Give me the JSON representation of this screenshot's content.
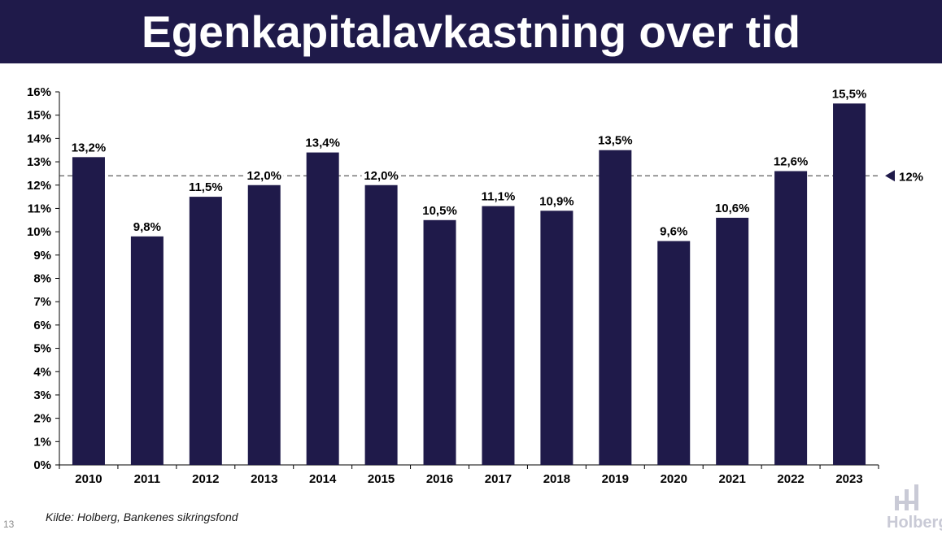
{
  "title": "Egenkapitalavkastning over tid",
  "source": "Kilde: Holberg, Bankenes sikringsfond",
  "page_number": "13",
  "logo": {
    "text": "Holberg",
    "icon": "holberg-logo-icon",
    "color": "#c9cad6"
  },
  "colors": {
    "bar": "#1f1a4a",
    "title_bg": "#1f1a4a",
    "title_text": "#ffffff"
  },
  "chart_data": {
    "type": "bar",
    "categories": [
      "2010",
      "2011",
      "2012",
      "2013",
      "2014",
      "2015",
      "2016",
      "2017",
      "2018",
      "2019",
      "2020",
      "2021",
      "2022",
      "2023"
    ],
    "values": [
      13.2,
      9.8,
      11.5,
      12.0,
      13.4,
      12.0,
      10.5,
      11.1,
      10.9,
      13.5,
      9.6,
      10.6,
      12.6,
      15.5
    ],
    "data_labels": [
      "13,2%",
      "9,8%",
      "11,5%",
      "12,0%",
      "13,4%",
      "12,0%",
      "10,5%",
      "11,1%",
      "10,9%",
      "13,5%",
      "9,6%",
      "10,6%",
      "12,6%",
      "15,5%"
    ],
    "ylim": [
      0,
      16
    ],
    "yticks": [
      0,
      1,
      2,
      3,
      4,
      5,
      6,
      7,
      8,
      9,
      10,
      11,
      12,
      13,
      14,
      15,
      16
    ],
    "ytick_labels": [
      "0%",
      "1%",
      "2%",
      "3%",
      "4%",
      "5%",
      "6%",
      "7%",
      "8%",
      "9%",
      "10%",
      "11%",
      "12%",
      "13%",
      "14%",
      "15%",
      "16%"
    ],
    "reference_line": {
      "value": 12.4,
      "label": "12%",
      "style": "dashed",
      "marker": "triangle-left-icon"
    },
    "grid": false,
    "legend": "none"
  }
}
